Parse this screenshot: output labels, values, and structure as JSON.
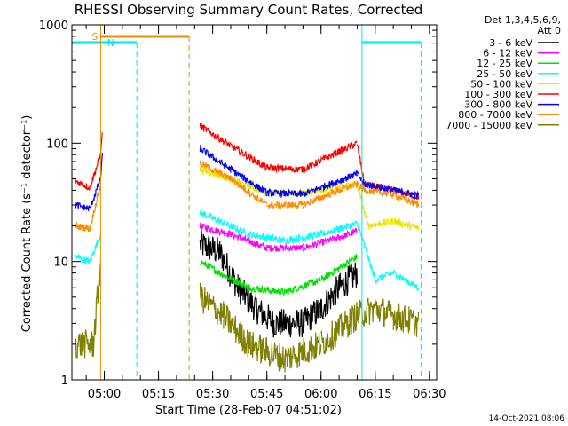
{
  "chart_data": {
    "type": "line",
    "title": "RHESSI Observing Summary Count Rates, Corrected",
    "xlabel": "Start Time (28-Feb-07 04:51:02)",
    "ylabel": "Corrected Count Rate (s⁻¹ detector⁻¹)",
    "ylog": true,
    "ylim": [
      1,
      1000
    ],
    "xlim": [
      "04:51:02",
      "06:32:00"
    ],
    "x_ticks": [
      "05:00",
      "05:15",
      "05:30",
      "05:45",
      "06:00",
      "06:15",
      "06:30"
    ],
    "y_ticks": [
      "1",
      "10",
      "100",
      "1000"
    ],
    "legend_header": [
      "Det 1,3,4,5,6,9,",
      "Att 0"
    ],
    "legend_position": "right",
    "flags": [
      {
        "label": "S",
        "start": "04:59:00",
        "end": "05:23:30",
        "color": "#e69000",
        "dashed_end": true
      },
      {
        "label": "N",
        "start": "04:51:02",
        "end": "05:09:00",
        "color": "#00e5ee",
        "dashed_end": true
      },
      {
        "label": "",
        "start": "06:11:20",
        "end": "06:27:40",
        "color": "#00e5ee",
        "dashed_end": true
      }
    ],
    "series": [
      {
        "name": "3 - 6 keV",
        "color": "#000000",
        "points": [
          [
            "05:26:30",
            14
          ],
          [
            "05:32:00",
            12
          ],
          [
            "05:37:00",
            6
          ],
          [
            "05:42:00",
            4
          ],
          [
            "05:47:00",
            3
          ],
          [
            "05:55:00",
            3
          ],
          [
            "06:00:00",
            4
          ],
          [
            "06:05:00",
            6
          ],
          [
            "06:10:00",
            8
          ]
        ]
      },
      {
        "name": "6 - 12 keV",
        "color": "#ff00ff",
        "points": [
          [
            "05:26:30",
            20
          ],
          [
            "05:35:00",
            17
          ],
          [
            "05:45:00",
            13
          ],
          [
            "05:55:00",
            13
          ],
          [
            "06:05:00",
            16
          ],
          [
            "06:10:00",
            18
          ]
        ]
      },
      {
        "name": "12 - 25 keV",
        "color": "#00e000",
        "points": [
          [
            "05:26:30",
            10
          ],
          [
            "05:32:00",
            8
          ],
          [
            "05:40:00",
            6
          ],
          [
            "05:50:00",
            5.5
          ],
          [
            "06:00:00",
            7
          ],
          [
            "06:10:00",
            11
          ]
        ]
      },
      {
        "name": "25 - 50 keV",
        "color": "#00ffff",
        "points": [
          [
            "04:52:00",
            11
          ],
          [
            "04:56:00",
            10
          ],
          [
            "04:59:00",
            17
          ],
          [
            "05:26:30",
            26
          ],
          [
            "05:40:00",
            17
          ],
          [
            "05:50:00",
            15
          ],
          [
            "06:00:00",
            17
          ],
          [
            "06:10:00",
            21
          ],
          [
            "06:15:00",
            7
          ],
          [
            "06:20:00",
            8
          ],
          [
            "06:27:00",
            6
          ]
        ]
      },
      {
        "name": "50 - 100 keV",
        "color": "#e6e600",
        "points": [
          [
            "05:26:30",
            60
          ],
          [
            "05:35:00",
            50
          ],
          [
            "05:45:00",
            38
          ],
          [
            "05:55:00",
            38
          ],
          [
            "06:05:00",
            43
          ],
          [
            "06:10:00",
            45
          ],
          [
            "06:13:00",
            20
          ],
          [
            "06:20:00",
            22
          ],
          [
            "06:27:00",
            19
          ]
        ]
      },
      {
        "name": "100 - 300 keV",
        "color": "#ff0000",
        "points": [
          [
            "04:52:00",
            48
          ],
          [
            "04:56:00",
            42
          ],
          [
            "04:59:00",
            80
          ],
          [
            "04:59:30",
            130
          ],
          [
            "05:26:30",
            140
          ],
          [
            "05:35:00",
            95
          ],
          [
            "05:45:00",
            62
          ],
          [
            "05:55:00",
            60
          ],
          [
            "06:05:00",
            85
          ],
          [
            "06:10:00",
            100
          ],
          [
            "06:12:00",
            45
          ],
          [
            "06:20:00",
            40
          ],
          [
            "06:27:00",
            35
          ]
        ]
      },
      {
        "name": "300 - 800 keV",
        "color": "#0000ff",
        "points": [
          [
            "04:52:00",
            30
          ],
          [
            "04:56:00",
            28
          ],
          [
            "04:59:00",
            50
          ],
          [
            "04:59:30",
            80
          ],
          [
            "05:26:30",
            90
          ],
          [
            "05:35:00",
            60
          ],
          [
            "05:45:00",
            38
          ],
          [
            "05:55:00",
            37
          ],
          [
            "06:05:00",
            48
          ],
          [
            "06:10:00",
            55
          ],
          [
            "06:12:00",
            45
          ],
          [
            "06:20:00",
            40
          ],
          [
            "06:27:00",
            36
          ]
        ]
      },
      {
        "name": "800 - 7000 keV",
        "color": "#ff8c00",
        "points": [
          [
            "04:52:00",
            20
          ],
          [
            "04:56:00",
            19
          ],
          [
            "04:59:00",
            45
          ],
          [
            "05:26:30",
            68
          ],
          [
            "05:35:00",
            50
          ],
          [
            "05:45:00",
            30
          ],
          [
            "05:55:00",
            30
          ],
          [
            "06:05:00",
            40
          ],
          [
            "06:10:00",
            45
          ],
          [
            "06:12:00",
            40
          ],
          [
            "06:20:00",
            37
          ],
          [
            "06:27:00",
            30
          ]
        ]
      },
      {
        "name": "7000 - 15000 keV",
        "color": "#808000",
        "points": [
          [
            "04:52:00",
            2
          ],
          [
            "04:57:00",
            2
          ],
          [
            "04:59:00",
            10
          ],
          [
            "05:26:30",
            5
          ],
          [
            "05:33:00",
            3.5
          ],
          [
            "05:40:00",
            2
          ],
          [
            "05:50:00",
            1.5
          ],
          [
            "06:00:00",
            2
          ],
          [
            "06:10:00",
            3.5
          ],
          [
            "06:15:00",
            4
          ],
          [
            "06:20:00",
            3.5
          ],
          [
            "06:27:00",
            3
          ]
        ]
      }
    ]
  },
  "footer": {
    "date": "14-Oct-2021 08:06"
  }
}
